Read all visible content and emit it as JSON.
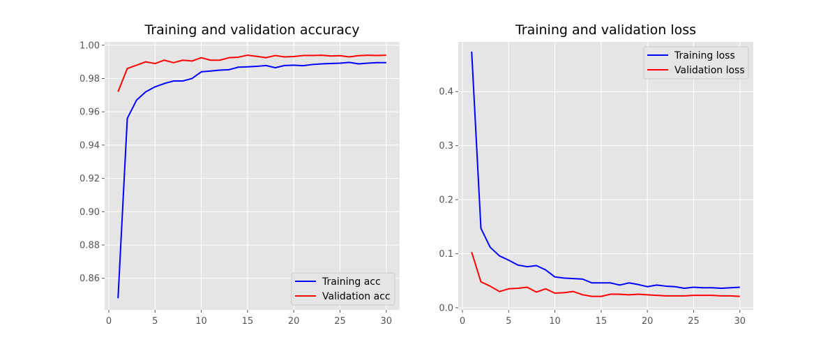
{
  "chart_data": [
    {
      "type": "line",
      "title": "Training and validation accuracy",
      "xlabel": "",
      "ylabel": "",
      "xlim": [
        -0.45,
        31.45
      ],
      "ylim": [
        0.841,
        1.002
      ],
      "xticks": [
        0,
        5,
        10,
        15,
        20,
        25,
        30
      ],
      "xtick_labels": [
        "0",
        "5",
        "10",
        "15",
        "20",
        "25",
        "30"
      ],
      "yticks": [
        0.86,
        0.88,
        0.9,
        0.92,
        0.94,
        0.96,
        0.98,
        1.0
      ],
      "ytick_labels": [
        "0.86",
        "0.88",
        "0.90",
        "0.92",
        "0.94",
        "0.96",
        "0.98",
        "1.00"
      ],
      "grid": true,
      "legend_position": "bottom-right",
      "x": [
        1,
        2,
        3,
        4,
        5,
        6,
        7,
        8,
        9,
        10,
        11,
        12,
        13,
        14,
        15,
        16,
        17,
        18,
        19,
        20,
        21,
        22,
        23,
        24,
        25,
        26,
        27,
        28,
        29,
        30
      ],
      "series": [
        {
          "name": "Training acc",
          "color": "#0000ff",
          "values": [
            0.848,
            0.956,
            0.967,
            0.972,
            0.975,
            0.977,
            0.9785,
            0.9785,
            0.98,
            0.984,
            0.9845,
            0.985,
            0.9853,
            0.9868,
            0.987,
            0.9873,
            0.9878,
            0.9865,
            0.9878,
            0.988,
            0.9877,
            0.9884,
            0.9888,
            0.989,
            0.9892,
            0.9897,
            0.9888,
            0.9892,
            0.9895,
            0.9895
          ]
        },
        {
          "name": "Validation acc",
          "color": "#ff0000",
          "values": [
            0.972,
            0.986,
            0.988,
            0.99,
            0.989,
            0.991,
            0.9895,
            0.991,
            0.9905,
            0.9925,
            0.991,
            0.991,
            0.9925,
            0.9928,
            0.994,
            0.9933,
            0.9925,
            0.9938,
            0.993,
            0.9932,
            0.9938,
            0.9938,
            0.994,
            0.9935,
            0.9937,
            0.993,
            0.9937,
            0.994,
            0.9938,
            0.994
          ]
        }
      ]
    },
    {
      "type": "line",
      "title": "Training and validation loss",
      "xlabel": "",
      "ylabel": "",
      "xlim": [
        -0.45,
        31.45
      ],
      "ylim": [
        -0.004,
        0.492
      ],
      "xticks": [
        0,
        5,
        10,
        15,
        20,
        25,
        30
      ],
      "xtick_labels": [
        "0",
        "5",
        "10",
        "15",
        "20",
        "25",
        "30"
      ],
      "yticks": [
        0.0,
        0.1,
        0.2,
        0.3,
        0.4
      ],
      "ytick_labels": [
        "0.0",
        "0.1",
        "0.2",
        "0.3",
        "0.4"
      ],
      "grid": true,
      "legend_position": "top-right",
      "x": [
        1,
        2,
        3,
        4,
        5,
        6,
        7,
        8,
        9,
        10,
        11,
        12,
        13,
        14,
        15,
        16,
        17,
        18,
        19,
        20,
        21,
        22,
        23,
        24,
        25,
        26,
        27,
        28,
        29,
        30
      ],
      "series": [
        {
          "name": "Training loss",
          "color": "#0000ff",
          "values": [
            0.474,
            0.147,
            0.112,
            0.096,
            0.088,
            0.079,
            0.076,
            0.078,
            0.07,
            0.057,
            0.055,
            0.054,
            0.053,
            0.046,
            0.046,
            0.046,
            0.042,
            0.046,
            0.043,
            0.039,
            0.042,
            0.04,
            0.039,
            0.036,
            0.038,
            0.037,
            0.037,
            0.036,
            0.037,
            0.038
          ]
        },
        {
          "name": "Validation loss",
          "color": "#ff0000",
          "values": [
            0.103,
            0.048,
            0.04,
            0.03,
            0.035,
            0.036,
            0.038,
            0.029,
            0.035,
            0.027,
            0.028,
            0.03,
            0.024,
            0.021,
            0.021,
            0.025,
            0.025,
            0.024,
            0.025,
            0.024,
            0.023,
            0.022,
            0.022,
            0.022,
            0.023,
            0.023,
            0.023,
            0.022,
            0.022,
            0.021
          ]
        }
      ]
    }
  ]
}
